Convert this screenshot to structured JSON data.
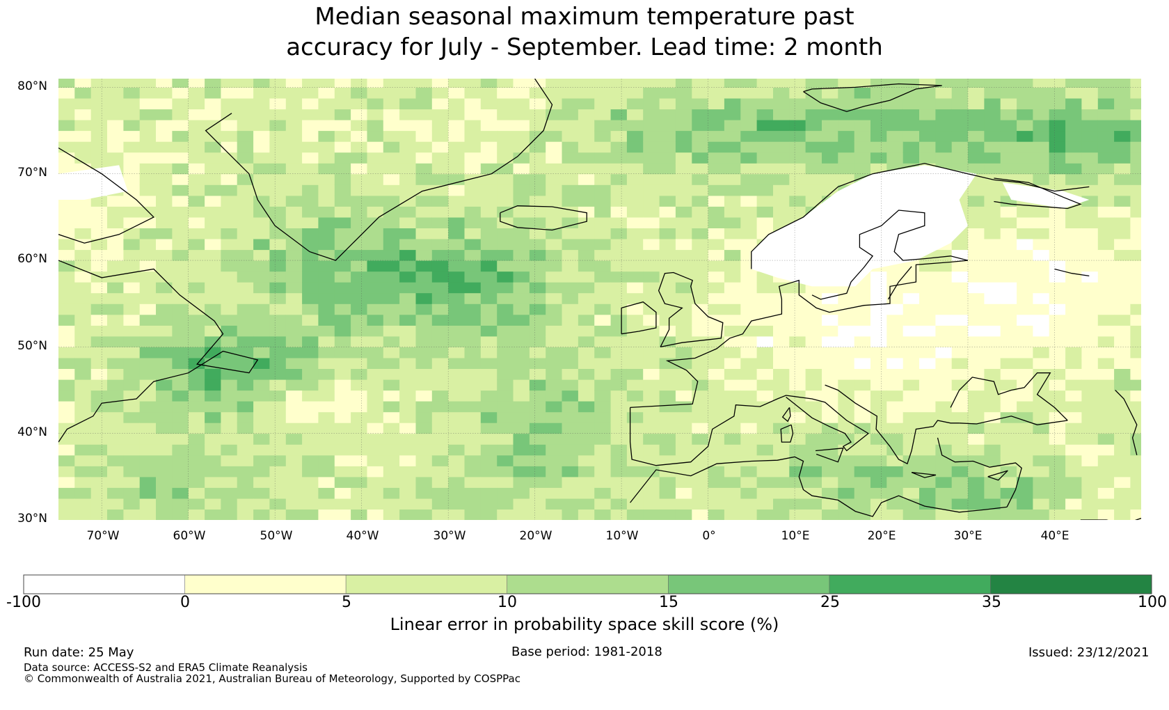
{
  "title": {
    "line1": "Median seasonal maximum temperature past",
    "line2": "accuracy for July - September. Lead time: 2 month"
  },
  "map": {
    "lat_labels": [
      "80°N",
      "70°N",
      "60°N",
      "50°N",
      "40°N",
      "30°N"
    ],
    "lon_labels": [
      "70°W",
      "60°W",
      "50°W",
      "40°W",
      "30°W",
      "20°W",
      "10°W",
      "0°",
      "10°E",
      "20°E",
      "30°E",
      "40°E"
    ],
    "lat_range": [
      30,
      81
    ],
    "lon_range": [
      -75,
      50
    ]
  },
  "colorbar": {
    "ticks": [
      "-100",
      "0",
      "5",
      "10",
      "15",
      "25",
      "35",
      "100"
    ],
    "colors": [
      "#ffffff",
      "#ffffcc",
      "#d9f0a3",
      "#addd8e",
      "#78c679",
      "#41ab5d",
      "#238443"
    ],
    "label": "Linear error in probability space skill score (%)"
  },
  "footer": {
    "run_date": "Run date: 25 May",
    "base_period": "Base period: 1981-2018",
    "issued": "Issued: 23/12/2021",
    "data_source": "Data source: ACCESS-S2 and ERA5 Climate Reanalysis",
    "copyright": "© Commonwealth of Australia 2021, Australian Bureau of Meteorology, Supported by COSPPac"
  }
}
